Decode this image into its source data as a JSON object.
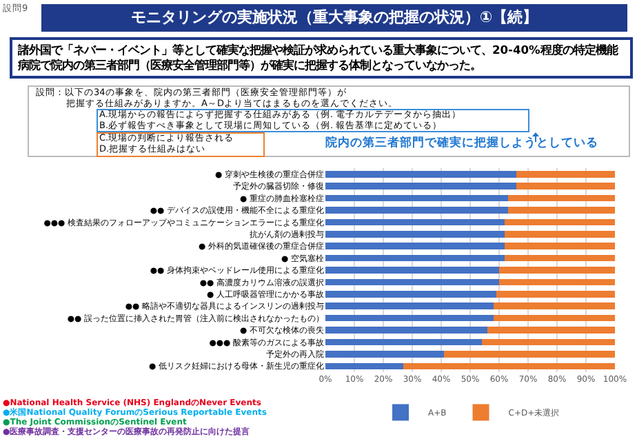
{
  "chart_data": {
    "type": "bar",
    "orientation": "horizontal",
    "stacked": true,
    "title": "モニタリングの実施状況（重大事象の把握の状況）①【続】",
    "subtitle": "諸外国で「ネバー・イベント」等として確実な把握や検証が求められている重大事象について、20-40%程度の特定機能病院で院内の第三者部門（医療安全管理部門等）が確実に把握する体制となっていなかった。",
    "annotations": [
      "設問9",
      "設問：以下の34の事象を、院内の第三者部門（医療安全管理部門等）が",
      "把握する仕組みがありますか。A～Dより当てはまるものを選んでください。",
      "A.現場からの報告によらず把握する仕組みがある（例. 電子カルテデータから抽出）",
      "B.必ず報告すべき事象として現場に周知している（例. 報告基準に定めている）",
      "C.現場の判断により報告される",
      "D.把握する仕組みはない",
      "院内の第三者部門で確実に把握しようとしている",
      "●National Health Service (NHS) EnglandのNever Events",
      "●米国National Quality ForumのSerious Reportable Events",
      "●The Joint CommissionのSentinel Event",
      "●医療事故調査・支援センターの医療事故の再発防止に向けた提言"
    ],
    "categories": [
      "● 穿刺や生検後の重症合併症",
      "予定外の臓器切除・修復",
      "● 重症の肺血栓塞栓症",
      "●● デバイスの誤使用・機能不全による重症化",
      "●●● 検査結果のフォローアップやコミュニケーションエラーによる重症化",
      "抗がん剤の過剰投与",
      "● 外科的気道確保後の重症合併症",
      "● 空気塞栓",
      "●● 身体拘束やベッドレール使用による重症化",
      "●● 高濃度カリウム溶液の誤選択",
      "● 人工呼吸器管理にかかる事故",
      "●● 略語や不適切な器具によるインスリンの過剰投与",
      "●● 誤った位置に挿入された胃管（注入前に検出されなかったもの）",
      "● 不可欠な検体の喪失",
      "●●● 酸素等のガスによる事故",
      "予定外の再入院",
      "● 低リスク妊婦における母体・新生児の重症化"
    ],
    "series": [
      {
        "name": "A+B",
        "color": "#4472c4",
        "values": [
          66,
          66,
          63,
          63,
          62,
          62,
          62,
          62,
          60,
          60,
          59,
          58,
          58,
          56,
          54,
          41,
          27
        ]
      },
      {
        "name": "C+D+未選択",
        "color": "#ed7d31",
        "values": [
          34,
          34,
          37,
          37,
          38,
          38,
          38,
          38,
          40,
          40,
          41,
          42,
          42,
          44,
          46,
          59,
          73
        ]
      }
    ],
    "xlim": [
      0,
      100
    ],
    "xticks": [
      {
        "value": 0,
        "label": "0%"
      },
      {
        "value": 10,
        "label": "10%"
      },
      {
        "value": 20,
        "label": "20%"
      },
      {
        "value": 30,
        "label": "30%"
      },
      {
        "value": 40,
        "label": "40%"
      },
      {
        "value": 50,
        "label": "50%"
      },
      {
        "value": 60,
        "label": "60%"
      },
      {
        "value": 70,
        "label": "70%"
      },
      {
        "value": 80,
        "label": "80%"
      },
      {
        "value": 90,
        "label": "90%"
      },
      {
        "value": 100,
        "label": "100%"
      }
    ],
    "grid": "x",
    "legend": "bottom"
  }
}
